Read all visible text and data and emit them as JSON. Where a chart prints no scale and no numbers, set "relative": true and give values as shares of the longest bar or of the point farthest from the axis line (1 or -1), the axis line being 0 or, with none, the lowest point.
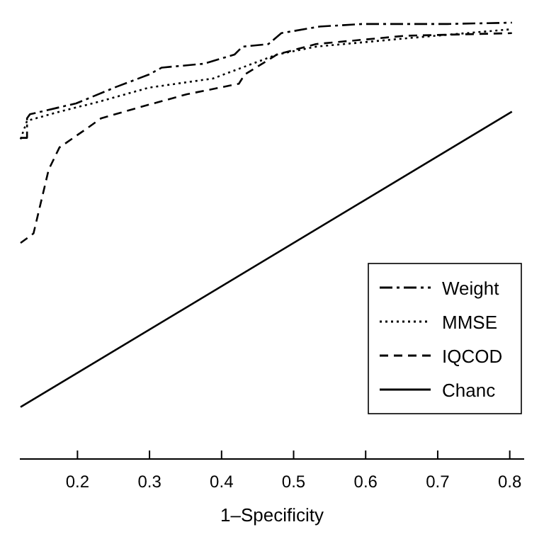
{
  "chart_data": {
    "type": "line",
    "xlabel": "1–Specificity",
    "relative": true,
    "xlim": [
      0.12,
      0.82
    ],
    "xticks": [
      0.2,
      0.3,
      0.4,
      0.5,
      0.6,
      0.7,
      0.8
    ],
    "legend": "right",
    "marker": "none",
    "grid": false,
    "series": [
      {
        "name": "Weight",
        "color": "#000000",
        "line_style": "dashdot",
        "x": [
          0.121,
          0.13,
          0.13,
          0.134,
          0.157,
          0.198,
          0.216,
          0.251,
          0.299,
          0.317,
          0.376,
          0.418,
          0.429,
          0.465,
          0.483,
          0.536,
          0.596,
          0.714,
          0.803
        ],
        "values": [
          0.736,
          0.736,
          0.781,
          0.79,
          0.799,
          0.815,
          0.827,
          0.851,
          0.881,
          0.897,
          0.906,
          0.927,
          0.945,
          0.951,
          0.976,
          0.991,
          0.997,
          0.997,
          1.0
        ]
      },
      {
        "name": "MMSE",
        "color": "#000000",
        "line_style": "dotted",
        "x": [
          0.121,
          0.13,
          0.175,
          0.228,
          0.299,
          0.388,
          0.477,
          0.531,
          0.655,
          0.803
        ],
        "values": [
          0.733,
          0.775,
          0.796,
          0.818,
          0.851,
          0.872,
          0.927,
          0.945,
          0.964,
          0.985
        ]
      },
      {
        "name": "IQCOD",
        "color": "#000000",
        "line_style": "dashed",
        "x": [
          0.121,
          0.139,
          0.16,
          0.175,
          0.21,
          0.233,
          0.299,
          0.352,
          0.424,
          0.432,
          0.477,
          0.531,
          0.655,
          0.803
        ],
        "values": [
          0.495,
          0.517,
          0.663,
          0.714,
          0.754,
          0.781,
          0.812,
          0.836,
          0.86,
          0.881,
          0.927,
          0.951,
          0.97,
          0.976
        ]
      },
      {
        "name": "Chanc",
        "color": "#000000",
        "line_style": "solid",
        "x": [
          0.121,
          0.803
        ],
        "values": [
          0.119,
          0.796
        ]
      }
    ]
  }
}
